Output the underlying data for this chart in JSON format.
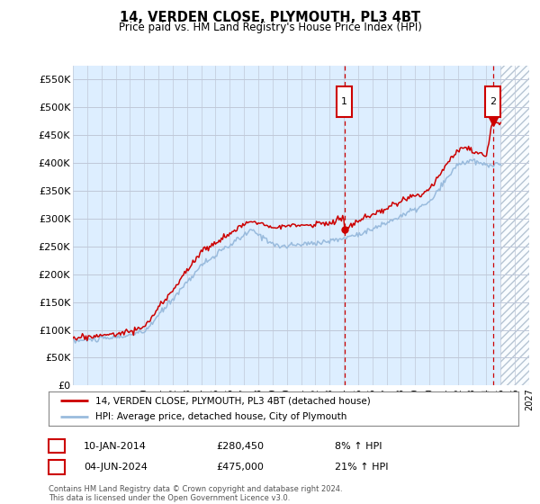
{
  "title": "14, VERDEN CLOSE, PLYMOUTH, PL3 4BT",
  "subtitle": "Price paid vs. HM Land Registry's House Price Index (HPI)",
  "ylim": [
    0,
    575000
  ],
  "yticks": [
    0,
    50000,
    100000,
    150000,
    200000,
    250000,
    300000,
    350000,
    400000,
    450000,
    500000,
    550000
  ],
  "ytick_labels": [
    "£0",
    "£50K",
    "£100K",
    "£150K",
    "£200K",
    "£250K",
    "£300K",
    "£350K",
    "£400K",
    "£450K",
    "£500K",
    "£550K"
  ],
  "sale1_date": "10-JAN-2014",
  "sale1_price": "£280,450",
  "sale1_hpi_text": "8% ↑ HPI",
  "sale2_date": "04-JUN-2024",
  "sale2_price": "£475,000",
  "sale2_hpi_text": "21% ↑ HPI",
  "legend_label1": "14, VERDEN CLOSE, PLYMOUTH, PL3 4BT (detached house)",
  "legend_label2": "HPI: Average price, detached house, City of Plymouth",
  "footer": "Contains HM Land Registry data © Crown copyright and database right 2024.\nThis data is licensed under the Open Government Licence v3.0.",
  "line_color_red": "#CC0000",
  "line_color_blue": "#99BBDD",
  "bg_color": "#DDEEFF",
  "grid_color": "#C0C8D8",
  "marker1_x_year": 2014.03,
  "marker2_x_year": 2024.45,
  "sale1_y": 280450,
  "sale2_y": 475000,
  "hatch_start_year": 2025.0,
  "xlim_start": 1995,
  "xlim_end": 2027
}
